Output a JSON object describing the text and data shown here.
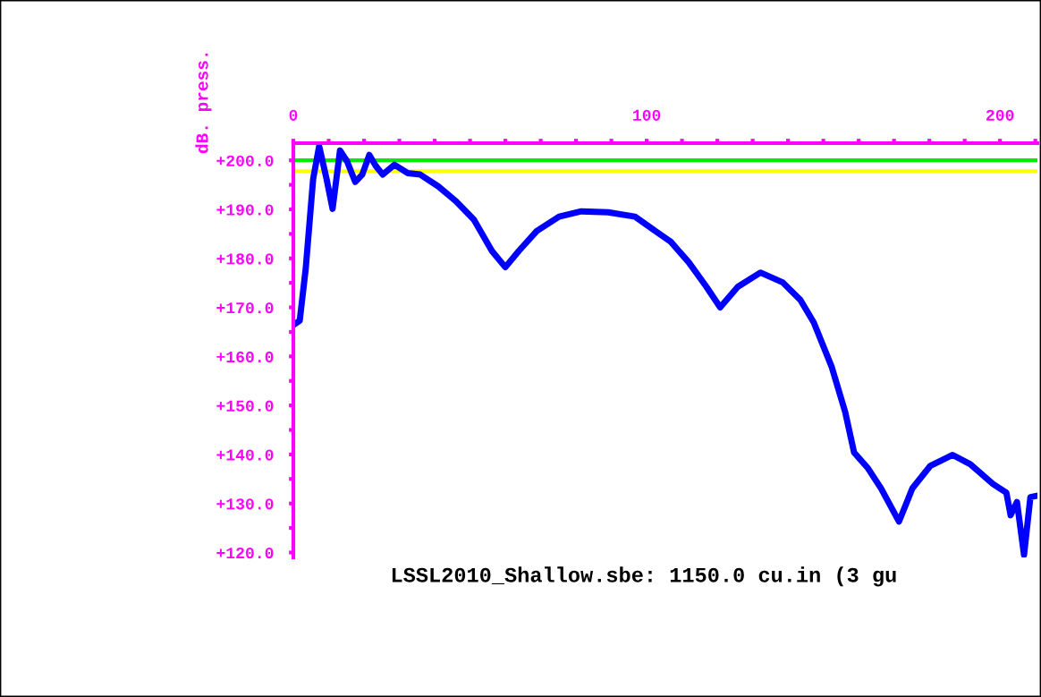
{
  "chart_data": {
    "type": "line",
    "ylabel": "dB. press.",
    "annotations": [
      "LSSL2010_Shallow.sbe: 1150.0 cu.in (3 gu"
    ],
    "xlim": [
      0,
      210.6
    ],
    "ylim": [
      119,
      203.5
    ],
    "xticks": [
      0,
      {
        "value": 10,
        "label": null
      },
      {
        "value": 20,
        "label": null
      },
      {
        "value": 30,
        "label": null
      },
      {
        "value": 40,
        "label": null
      },
      {
        "value": 50,
        "label": null
      },
      {
        "value": 60,
        "label": null
      },
      {
        "value": 70,
        "label": null
      },
      {
        "value": 80,
        "label": null
      },
      {
        "value": 90,
        "label": null
      },
      100,
      {
        "value": 110,
        "label": null
      },
      {
        "value": 120,
        "label": null
      },
      {
        "value": 130,
        "label": null
      },
      {
        "value": 140,
        "label": null
      },
      {
        "value": 150,
        "label": null
      },
      {
        "value": 160,
        "label": null
      },
      {
        "value": 170,
        "label": null
      },
      {
        "value": 180,
        "label": null
      },
      {
        "value": 190,
        "label": null
      },
      200,
      {
        "value": 210,
        "label": null
      }
    ],
    "yticks": [
      {
        "value": 120,
        "label": "+120.0"
      },
      {
        "value": 125,
        "label": null
      },
      {
        "value": 130,
        "label": "+130.0"
      },
      {
        "value": 135,
        "label": null
      },
      {
        "value": 140,
        "label": "+140.0"
      },
      {
        "value": 145,
        "label": null
      },
      {
        "value": 150,
        "label": "+150.0"
      },
      {
        "value": 155,
        "label": null
      },
      {
        "value": 160,
        "label": "+160.0"
      },
      {
        "value": 165,
        "label": null
      },
      {
        "value": 170,
        "label": "+170.0"
      },
      {
        "value": 175,
        "label": null
      },
      {
        "value": 180,
        "label": "+180.0"
      },
      {
        "value": 185,
        "label": null
      },
      {
        "value": 190,
        "label": "+190.0"
      },
      {
        "value": 195,
        "label": null
      },
      {
        "value": 200,
        "label": "+200.0"
      }
    ],
    "grid": false,
    "legend": false,
    "marker": "none",
    "line_style": "solid",
    "ref_lines": [
      {
        "axis": "y",
        "value": 200.0,
        "label": null,
        "color": "#00ee00"
      },
      {
        "axis": "y",
        "value": 197.8,
        "label": null,
        "color": "#ffff00"
      }
    ],
    "series": [
      {
        "color": "#0000ff",
        "x": [
          0,
          1.8,
          3.5,
          5.6,
          7.3,
          9.4,
          11.1,
          13.2,
          15.2,
          17.5,
          19.5,
          21.5,
          23.3,
          25.3,
          28.6,
          32.4,
          35.9,
          41.0,
          46.1,
          51.1,
          56.2,
          60.0,
          63.8,
          68.9,
          75.2,
          81.5,
          89.1,
          96.7,
          101.8,
          106.8,
          111.9,
          116.9,
          120.8,
          125.8,
          132.2,
          138.5,
          143.5,
          147.3,
          152.4,
          156.2,
          158.7,
          162.5,
          166.3,
          171.4,
          175.2,
          180.3,
          186.6,
          191.6,
          198.0,
          201.8,
          203.0,
          204.8,
          206.8,
          208.6,
          210.6
        ],
        "values": [
          166.4,
          167.3,
          177.9,
          196.2,
          202.9,
          196.2,
          190.1,
          202.0,
          199.8,
          195.6,
          197.1,
          201.1,
          198.9,
          197.1,
          199.1,
          197.4,
          197.1,
          194.7,
          191.6,
          187.9,
          181.5,
          178.2,
          181.5,
          185.6,
          188.5,
          189.6,
          189.4,
          188.5,
          185.9,
          183.4,
          179.2,
          174.2,
          170.0,
          174.2,
          177.1,
          175.1,
          171.5,
          166.9,
          157.8,
          148.6,
          140.4,
          137.3,
          133.1,
          126.3,
          133.1,
          137.7,
          139.9,
          138.0,
          134.0,
          132.2,
          127.6,
          130.3,
          119.5,
          131.3,
          131.6
        ]
      }
    ]
  }
}
